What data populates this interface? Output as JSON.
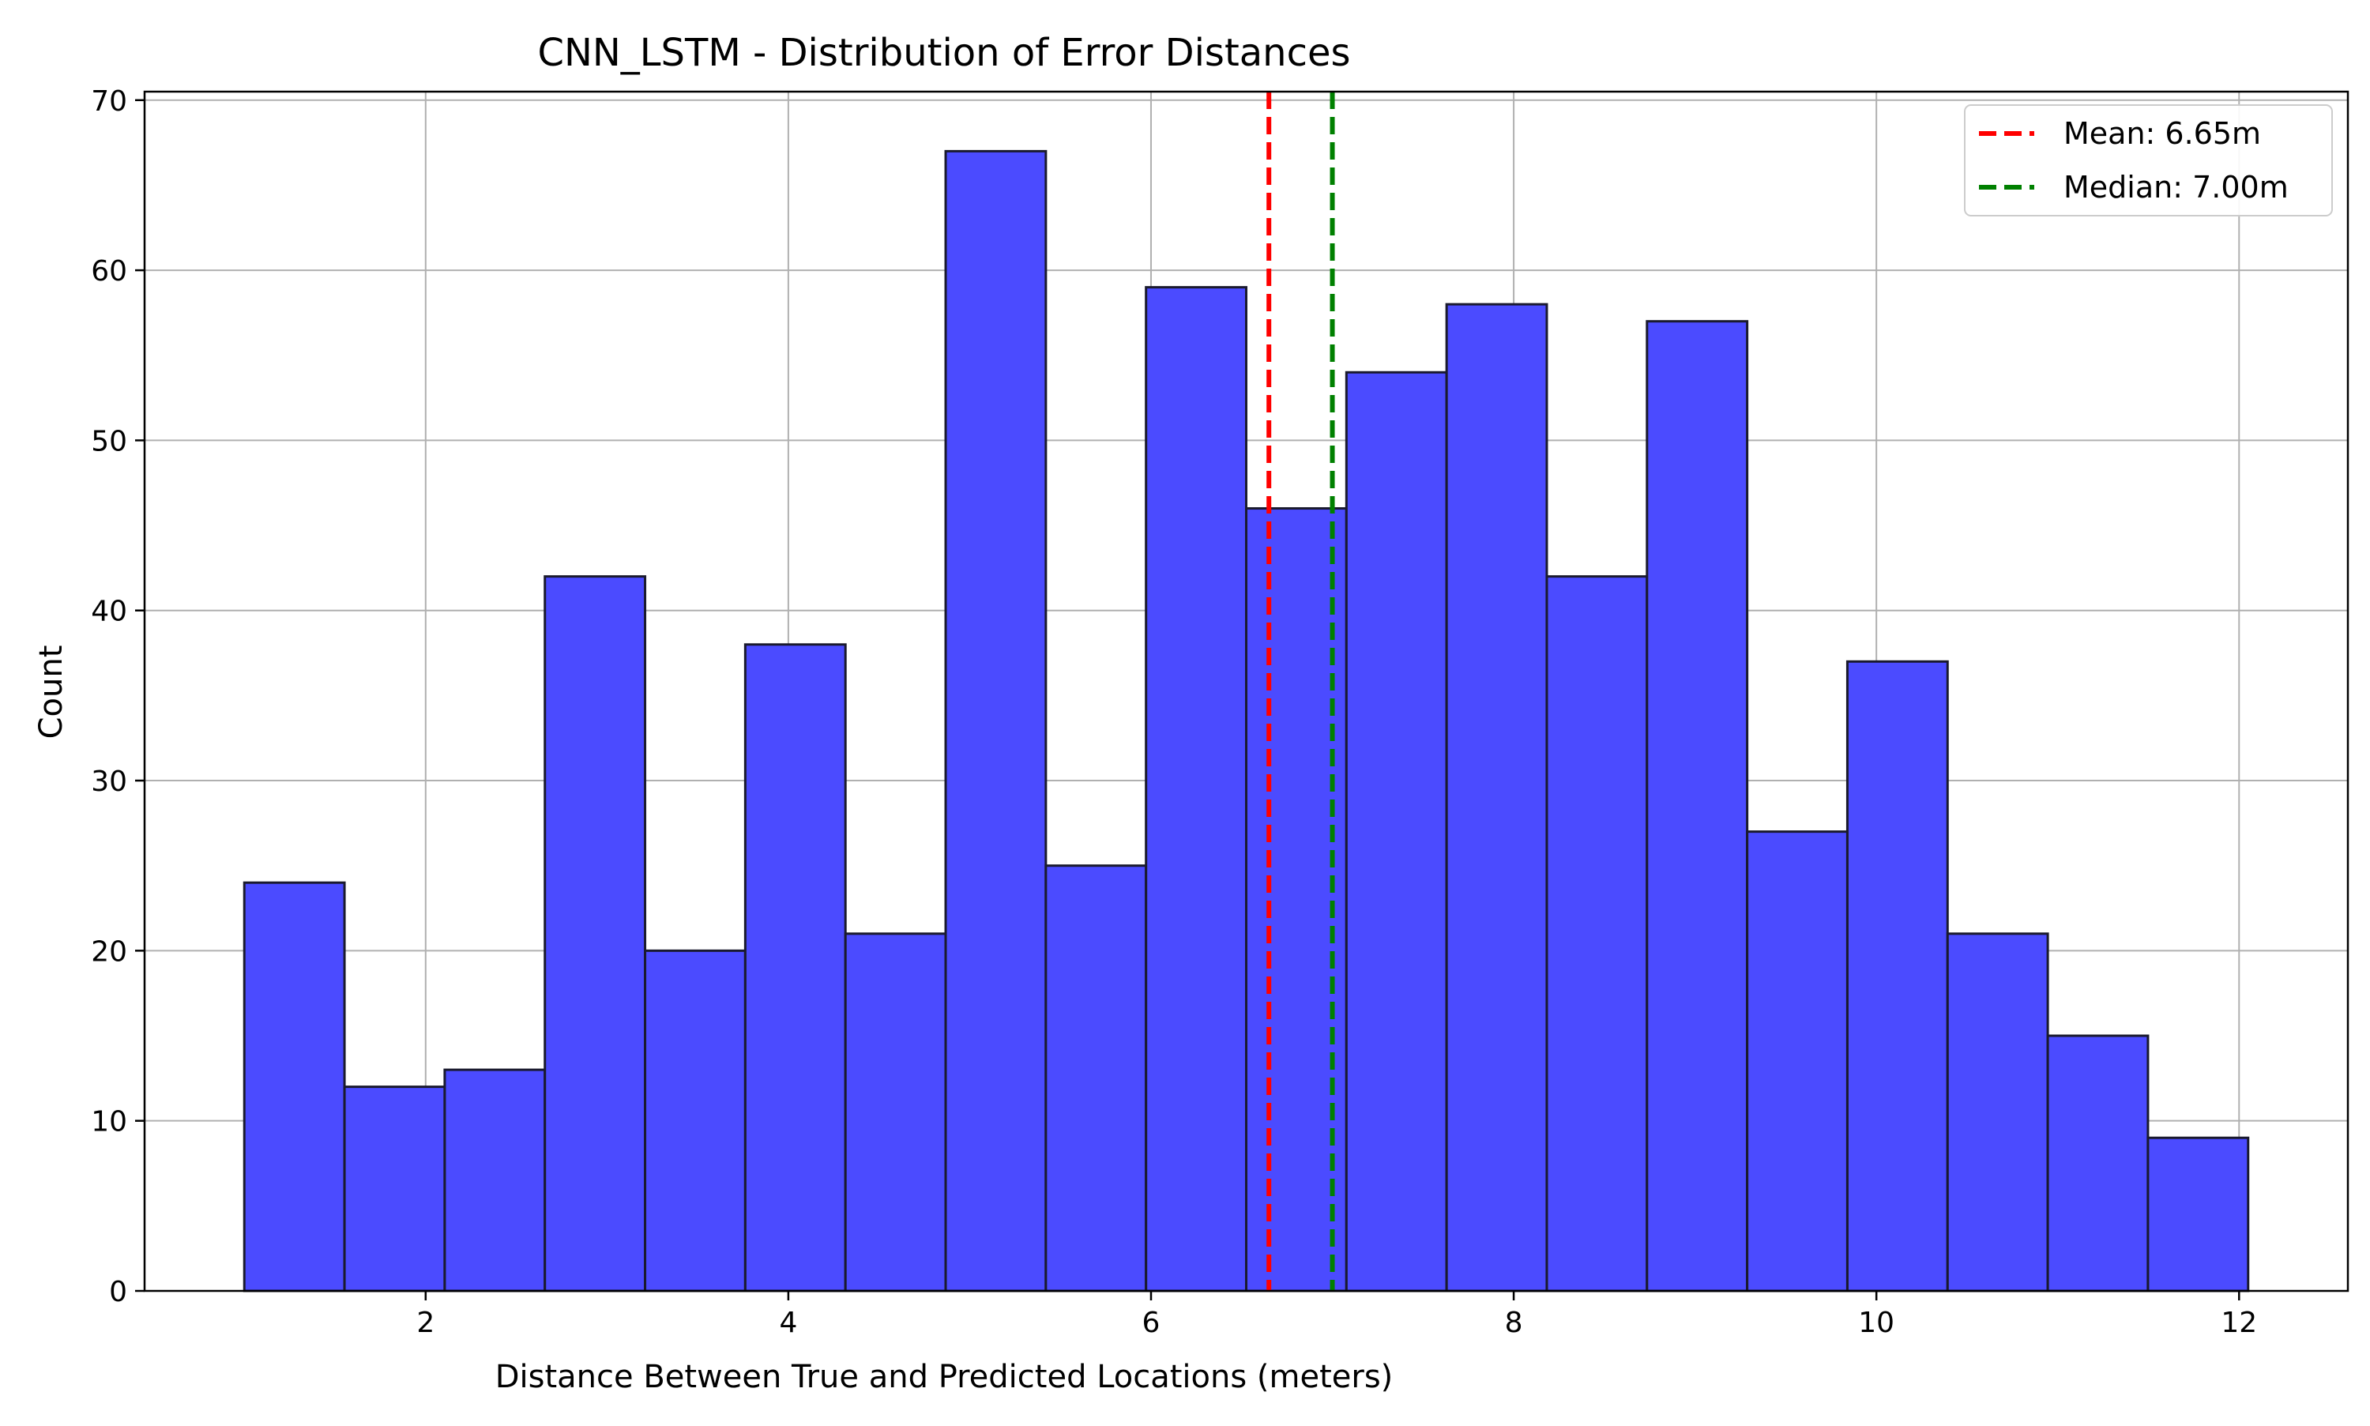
{
  "chart_data": {
    "type": "bar",
    "title": "CNN_LSTM - Distribution of Error Distances",
    "xlabel": "Distance Between True and Predicted Locations (meters)",
    "ylabel": "Count",
    "xlim": [
      0.45,
      12.6
    ],
    "ylim": [
      0,
      70.5
    ],
    "xticks": [
      2,
      4,
      6,
      8,
      10,
      12
    ],
    "yticks": [
      0,
      10,
      20,
      30,
      40,
      50,
      60,
      70
    ],
    "bins": {
      "edges": [
        1.0,
        1.5525,
        2.105,
        2.6575,
        3.21,
        3.7625,
        4.315,
        4.8675,
        5.42,
        5.9725,
        6.525,
        7.0775,
        7.63,
        8.1825,
        8.735,
        9.2875,
        9.84,
        10.3925,
        10.945,
        11.4975,
        12.05
      ],
      "counts": [
        24,
        12,
        13,
        42,
        20,
        38,
        21,
        67,
        25,
        59,
        46,
        54,
        58,
        42,
        57,
        27,
        37,
        21,
        15,
        9
      ]
    },
    "reference_lines": [
      {
        "label": "Mean: 6.65m",
        "x": 6.65,
        "color": "#ff0000",
        "style": "dashed"
      },
      {
        "label": "Median: 7.00m",
        "x": 7.0,
        "color": "#008000",
        "style": "dashed"
      }
    ],
    "bar_color": "#4b4bff",
    "bar_edge_color": "#1a1a2e",
    "grid": true,
    "legend_position": "top-right"
  }
}
